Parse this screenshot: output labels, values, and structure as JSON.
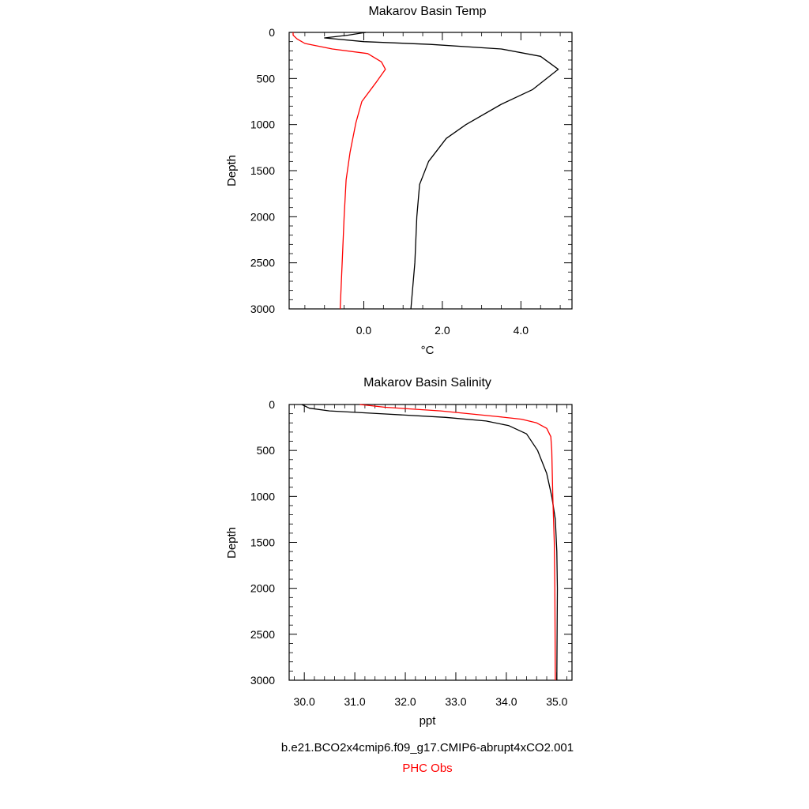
{
  "chart_data": [
    {
      "type": "line",
      "title": "Makarov Basin Temp",
      "xlabel": "°C",
      "ylabel": "Depth",
      "xlim": [
        -1.9,
        5.3
      ],
      "ylim": [
        3000,
        0
      ],
      "x_ticks": [
        0.0,
        2.0,
        4.0
      ],
      "x_tick_labels": [
        "0.0",
        "2.0",
        "4.0"
      ],
      "y_ticks": [
        0,
        500,
        1000,
        1500,
        2000,
        2500,
        3000
      ],
      "y_tick_labels": [
        "0",
        "500",
        "1000",
        "1500",
        "2000",
        "2500",
        "3000"
      ],
      "grid": false,
      "series": [
        {
          "name": "b.e21.BCO2x4cmip6.f09_g17.CMIP6-abrupt4xCO2.001",
          "color": "#000000",
          "points": [
            [
              0.05,
              0
            ],
            [
              -0.4,
              30
            ],
            [
              -1.0,
              60
            ],
            [
              0.0,
              100
            ],
            [
              1.7,
              130
            ],
            [
              3.5,
              180
            ],
            [
              4.5,
              260
            ],
            [
              4.95,
              400
            ],
            [
              4.3,
              620
            ],
            [
              3.5,
              780
            ],
            [
              2.6,
              1000
            ],
            [
              2.1,
              1150
            ],
            [
              1.65,
              1400
            ],
            [
              1.42,
              1650
            ],
            [
              1.35,
              2000
            ],
            [
              1.3,
              2500
            ],
            [
              1.2,
              3000
            ]
          ]
        },
        {
          "name": "PHC Obs",
          "color": "#ff0000",
          "points": [
            [
              -1.8,
              0
            ],
            [
              -1.8,
              30
            ],
            [
              -1.7,
              70
            ],
            [
              -1.5,
              120
            ],
            [
              -0.8,
              180
            ],
            [
              0.1,
              230
            ],
            [
              0.45,
              320
            ],
            [
              0.55,
              400
            ],
            [
              0.3,
              550
            ],
            [
              -0.05,
              750
            ],
            [
              -0.2,
              980
            ],
            [
              -0.35,
              1300
            ],
            [
              -0.45,
              1600
            ],
            [
              -0.5,
              2000
            ],
            [
              -0.55,
              2500
            ],
            [
              -0.6,
              3000
            ]
          ]
        }
      ]
    },
    {
      "type": "line",
      "title": "Makarov Basin Salinity",
      "xlabel": "ppt",
      "ylabel": "Depth",
      "xlim": [
        29.7,
        35.3
      ],
      "ylim": [
        3000,
        0
      ],
      "x_ticks": [
        30.0,
        31.0,
        32.0,
        33.0,
        34.0,
        35.0
      ],
      "x_tick_labels": [
        "30.0",
        "31.0",
        "32.0",
        "33.0",
        "34.0",
        "35.0"
      ],
      "y_ticks": [
        0,
        500,
        1000,
        1500,
        2000,
        2500,
        3000
      ],
      "y_tick_labels": [
        "0",
        "500",
        "1000",
        "1500",
        "2000",
        "2500",
        "3000"
      ],
      "grid": false,
      "series": [
        {
          "name": "b.e21.BCO2x4cmip6.f09_g17.CMIP6-abrupt4xCO2.001",
          "color": "#000000",
          "points": [
            [
              29.95,
              0
            ],
            [
              30.1,
              40
            ],
            [
              30.5,
              70
            ],
            [
              31.5,
              100
            ],
            [
              32.8,
              140
            ],
            [
              33.6,
              180
            ],
            [
              34.05,
              230
            ],
            [
              34.4,
              320
            ],
            [
              34.62,
              500
            ],
            [
              34.8,
              750
            ],
            [
              34.9,
              1000
            ],
            [
              34.97,
              1250
            ],
            [
              35.0,
              1600
            ],
            [
              35.01,
              2000
            ],
            [
              35.0,
              3000
            ]
          ]
        },
        {
          "name": "PHC Obs",
          "color": "#ff0000",
          "points": [
            [
              31.1,
              0
            ],
            [
              31.6,
              30
            ],
            [
              32.7,
              70
            ],
            [
              33.8,
              130
            ],
            [
              34.3,
              160
            ],
            [
              34.6,
              200
            ],
            [
              34.8,
              260
            ],
            [
              34.88,
              350
            ],
            [
              34.9,
              500
            ],
            [
              34.92,
              1000
            ],
            [
              34.95,
              1500
            ],
            [
              34.96,
              2000
            ],
            [
              34.97,
              3000
            ]
          ]
        }
      ]
    }
  ],
  "legend": {
    "placement": "bottom-center",
    "entries": [
      {
        "label": "b.e21.BCO2x4cmip6.f09_g17.CMIP6-abrupt4xCO2.001",
        "color": "#000000"
      },
      {
        "label": "PHC Obs",
        "color": "#ff0000"
      }
    ]
  }
}
